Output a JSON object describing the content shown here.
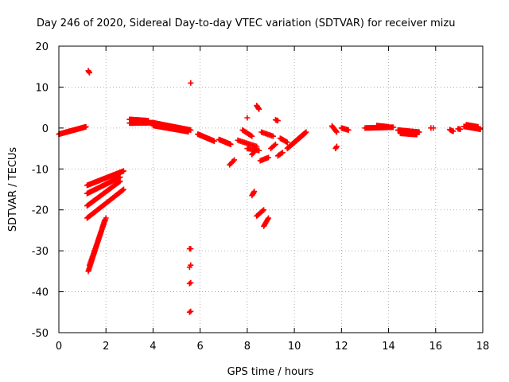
{
  "chart_data": {
    "type": "scatter",
    "title": "Day 246 of 2020, Sidereal Day-to-day VTEC variation (SDTVAR) for receiver mizu",
    "xlabel": "GPS time / hours",
    "ylabel": "SDTVAR / TECUs",
    "xlim": [
      0,
      18
    ],
    "ylim": [
      -50,
      20
    ],
    "xticks": [
      0,
      2,
      4,
      6,
      8,
      10,
      12,
      14,
      16,
      18
    ],
    "yticks": [
      -50,
      -40,
      -30,
      -20,
      -10,
      0,
      10,
      20
    ],
    "grid": true,
    "marker": "+",
    "color": "#ff0000",
    "segments": [
      {
        "x0": 0.0,
        "y0": -1.5,
        "x1": 1.15,
        "y1": 0.3,
        "n": 60
      },
      {
        "x0": 1.25,
        "y0": 14.0,
        "x1": 1.3,
        "y1": 13.5,
        "n": 3
      },
      {
        "x0": 1.2,
        "y0": -14.0,
        "x1": 2.75,
        "y1": -10.5,
        "n": 45
      },
      {
        "x0": 1.2,
        "y0": -16.0,
        "x1": 2.6,
        "y1": -12.0,
        "n": 40
      },
      {
        "x0": 1.2,
        "y0": -19.0,
        "x1": 2.6,
        "y1": -13.0,
        "n": 40
      },
      {
        "x0": 1.2,
        "y0": -22.0,
        "x1": 2.75,
        "y1": -15.0,
        "n": 45
      },
      {
        "x0": 1.25,
        "y0": -35.0,
        "x1": 1.95,
        "y1": -22.5,
        "n": 40
      },
      {
        "x0": 1.3,
        "y0": -33.5,
        "x1": 2.0,
        "y1": -22.0,
        "n": 30
      },
      {
        "x0": 3.0,
        "y0": 1.2,
        "x1": 4.0,
        "y1": 1.3,
        "n": 40
      },
      {
        "x0": 3.0,
        "y0": 2.1,
        "x1": 3.8,
        "y1": 1.8,
        "n": 30
      },
      {
        "x0": 4.0,
        "y0": 1.3,
        "x1": 5.6,
        "y1": -0.5,
        "n": 50
      },
      {
        "x0": 4.0,
        "y0": 0.6,
        "x1": 5.5,
        "y1": -0.9,
        "n": 40
      },
      {
        "x0": 5.6,
        "y0": 11.0,
        "x1": 5.6,
        "y1": 11.0,
        "n": 1
      },
      {
        "x0": 5.55,
        "y0": -29.5,
        "x1": 5.6,
        "y1": -29.5,
        "n": 2
      },
      {
        "x0": 5.55,
        "y0": -34.0,
        "x1": 5.6,
        "y1": -33.5,
        "n": 2
      },
      {
        "x0": 5.55,
        "y0": -38.0,
        "x1": 5.6,
        "y1": -37.8,
        "n": 2
      },
      {
        "x0": 5.55,
        "y0": -45.0,
        "x1": 5.6,
        "y1": -44.8,
        "n": 2
      },
      {
        "x0": 5.9,
        "y0": -1.5,
        "x1": 6.6,
        "y1": -3.2,
        "n": 30
      },
      {
        "x0": 6.8,
        "y0": -2.8,
        "x1": 7.3,
        "y1": -4.0,
        "n": 20
      },
      {
        "x0": 7.25,
        "y0": -9.0,
        "x1": 7.45,
        "y1": -7.8,
        "n": 5
      },
      {
        "x0": 7.6,
        "y0": -3.0,
        "x1": 8.4,
        "y1": -4.5,
        "n": 15
      },
      {
        "x0": 7.8,
        "y0": -0.5,
        "x1": 8.2,
        "y1": -2.0,
        "n": 10
      },
      {
        "x0": 8.0,
        "y0": 2.5,
        "x1": 8.0,
        "y1": 2.5,
        "n": 1
      },
      {
        "x0": 8.0,
        "y0": -5.0,
        "x1": 8.5,
        "y1": -5.5,
        "n": 10
      },
      {
        "x0": 8.2,
        "y0": -6.5,
        "x1": 8.4,
        "y1": -5.0,
        "n": 6
      },
      {
        "x0": 8.4,
        "y0": 5.5,
        "x1": 8.5,
        "y1": 4.6,
        "n": 5
      },
      {
        "x0": 8.2,
        "y0": -16.5,
        "x1": 8.3,
        "y1": -15.5,
        "n": 5
      },
      {
        "x0": 8.4,
        "y0": -21.5,
        "x1": 8.7,
        "y1": -20.0,
        "n": 8
      },
      {
        "x0": 8.7,
        "y0": -24.0,
        "x1": 8.9,
        "y1": -22.0,
        "n": 8
      },
      {
        "x0": 8.55,
        "y0": -8.0,
        "x1": 8.9,
        "y1": -7.2,
        "n": 8
      },
      {
        "x0": 8.6,
        "y0": -1.0,
        "x1": 9.1,
        "y1": -2.0,
        "n": 10
      },
      {
        "x0": 9.0,
        "y0": -5.0,
        "x1": 9.2,
        "y1": -4.0,
        "n": 5
      },
      {
        "x0": 9.2,
        "y0": 2.0,
        "x1": 9.3,
        "y1": 1.8,
        "n": 3
      },
      {
        "x0": 9.3,
        "y0": -6.8,
        "x1": 9.5,
        "y1": -6.0,
        "n": 5
      },
      {
        "x0": 9.4,
        "y0": -2.5,
        "x1": 9.7,
        "y1": -3.5,
        "n": 8
      },
      {
        "x0": 9.7,
        "y0": -5.0,
        "x1": 10.5,
        "y1": -1.0,
        "n": 30
      },
      {
        "x0": 9.9,
        "y0": -4.0,
        "x1": 10.4,
        "y1": -1.5,
        "n": 20
      },
      {
        "x0": 11.6,
        "y0": 0.5,
        "x1": 11.8,
        "y1": -1.0,
        "n": 8
      },
      {
        "x0": 11.75,
        "y0": -5.0,
        "x1": 11.8,
        "y1": -4.5,
        "n": 3
      },
      {
        "x0": 12.0,
        "y0": 0.0,
        "x1": 12.3,
        "y1": -0.5,
        "n": 10
      },
      {
        "x0": 13.0,
        "y0": 0.0,
        "x1": 14.2,
        "y1": 0.2,
        "n": 40
      },
      {
        "x0": 13.5,
        "y0": 0.6,
        "x1": 14.0,
        "y1": 0.3,
        "n": 15
      },
      {
        "x0": 14.4,
        "y0": -0.5,
        "x1": 15.3,
        "y1": -1.0,
        "n": 35
      },
      {
        "x0": 14.5,
        "y0": -1.3,
        "x1": 15.2,
        "y1": -1.6,
        "n": 25
      },
      {
        "x0": 15.8,
        "y0": 0.0,
        "x1": 15.9,
        "y1": 0.0,
        "n": 2
      },
      {
        "x0": 16.6,
        "y0": -0.4,
        "x1": 16.75,
        "y1": -0.8,
        "n": 5
      },
      {
        "x0": 16.95,
        "y0": -0.2,
        "x1": 17.05,
        "y1": -0.3,
        "n": 4
      },
      {
        "x0": 17.2,
        "y0": 0.4,
        "x1": 17.9,
        "y1": -0.3,
        "n": 25
      },
      {
        "x0": 17.3,
        "y0": 0.8,
        "x1": 17.8,
        "y1": 0.3,
        "n": 15
      }
    ]
  }
}
